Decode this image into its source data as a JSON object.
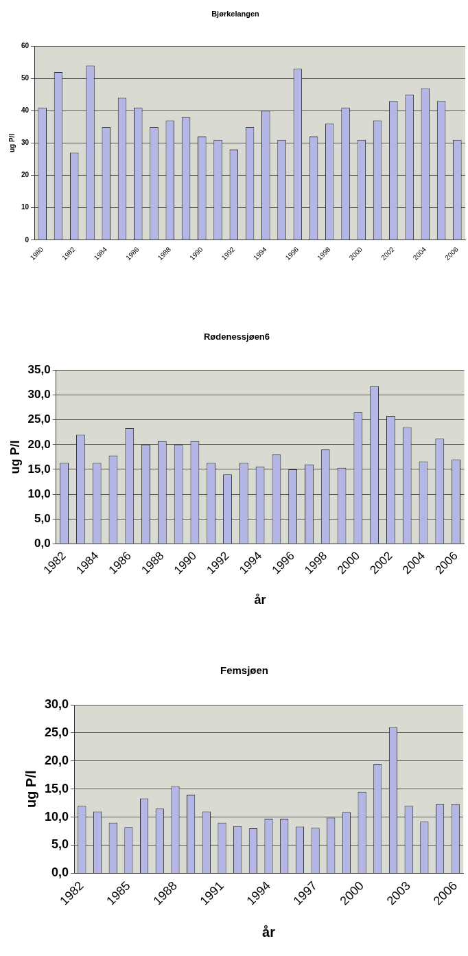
{
  "chart_data": [
    {
      "type": "bar",
      "title": "Bjørkelangen",
      "ylabel": "ug P/l",
      "categories": [
        "1980",
        null,
        "1982",
        null,
        "1984",
        null,
        "1986",
        null,
        "1988",
        null,
        "1990",
        null,
        "1992",
        null,
        "1994",
        null,
        "1996",
        null,
        "1998",
        null,
        "2000",
        null,
        "2002",
        null,
        "2004",
        null,
        "2006"
      ],
      "values": [
        41,
        52,
        27,
        54,
        35,
        44,
        41,
        35,
        37,
        38,
        32,
        31,
        28,
        35,
        40,
        31,
        53,
        32,
        36,
        41,
        31,
        37,
        43,
        45,
        47,
        43,
        31
      ],
      "color": "#b4b6e6",
      "ylim": [
        0,
        60
      ],
      "yticks": [
        0,
        10,
        20,
        30,
        40,
        50,
        60
      ],
      "grid": "y",
      "legend": false
    },
    {
      "type": "bar",
      "title": "Rødenessjøen6",
      "xlabel": "år",
      "ylabel": "ug P/l",
      "categories": [
        "1982",
        null,
        "1984",
        null,
        "1986",
        null,
        "1988",
        null,
        "1990",
        null,
        "1992",
        null,
        "1994",
        null,
        "1996",
        null,
        "1998",
        null,
        "2000",
        null,
        "2002",
        null,
        "2004",
        null,
        "2006"
      ],
      "values": [
        16.3,
        22,
        16.3,
        17.8,
        23.3,
        20,
        20.7,
        20,
        20.7,
        16.3,
        14,
        16.3,
        15.6,
        18,
        15,
        16,
        19,
        15.3,
        26.5,
        31.8,
        25.8,
        23.5,
        16.6,
        21.2,
        17
      ],
      "color": "#b4b6e6",
      "ylim": [
        0,
        35
      ],
      "yticks": [
        {
          "value": 0,
          "label": "0,0"
        },
        {
          "value": 5,
          "label": "5,0"
        },
        {
          "value": 10,
          "label": "10,0"
        },
        {
          "value": 15,
          "label": "15,0"
        },
        {
          "value": 20,
          "label": "20,0"
        },
        {
          "value": 25,
          "label": "25,0"
        },
        {
          "value": 30,
          "label": "30,0"
        },
        {
          "value": 35,
          "label": "35,0"
        }
      ],
      "grid": "y",
      "legend": false
    },
    {
      "type": "bar",
      "title": "Femsjøen",
      "xlabel": "år",
      "ylabel": "ug P/l",
      "categories": [
        "1982",
        null,
        null,
        "1985",
        null,
        null,
        "1988",
        null,
        null,
        "1991",
        null,
        null,
        "1994",
        null,
        null,
        "1997",
        null,
        null,
        "2000",
        null,
        null,
        "2003",
        null,
        null,
        "2006"
      ],
      "values": [
        12,
        11,
        9,
        8.2,
        13.3,
        11.5,
        15.5,
        14,
        11,
        9,
        8.4,
        8,
        9.7,
        9.7,
        8.3,
        8.1,
        9.9,
        10.9,
        14.5,
        19.5,
        26,
        12,
        9.2,
        12.3,
        12.3
      ],
      "color": "#b4b6e6",
      "ylim": [
        0,
        30
      ],
      "yticks": [
        {
          "value": 0,
          "label": "0,0"
        },
        {
          "value": 5,
          "label": "5,0"
        },
        {
          "value": 10,
          "label": "10,0"
        },
        {
          "value": 15,
          "label": "15,0"
        },
        {
          "value": 20,
          "label": "20,0"
        },
        {
          "value": 25,
          "label": "25,0"
        },
        {
          "value": 30,
          "label": "30,0"
        }
      ],
      "grid": "y",
      "legend": false
    }
  ]
}
